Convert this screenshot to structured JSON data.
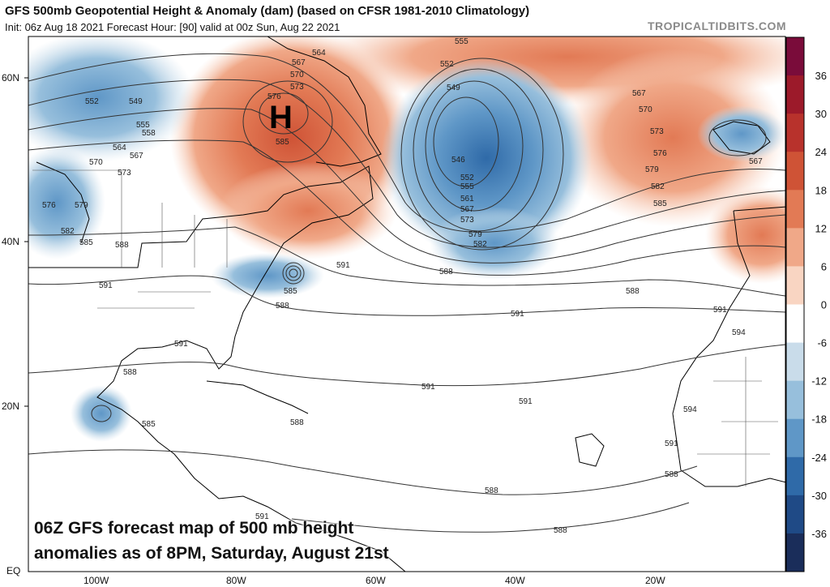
{
  "header": {
    "title": "GFS 500mb Geopotential Height & Anomaly (dam) (based on CFSR 1981-2010 Climatology)",
    "subtitle": "Init: 06z Aug 18 2021   Forecast Hour: [90]   valid at 00z Sun, Aug 22 2021",
    "credit": "TROPICALTIDBITS.COM"
  },
  "map": {
    "lat_labels": [
      "60N",
      "40N",
      "20N",
      "EQ"
    ],
    "lon_labels": [
      "100W",
      "80W",
      "60W",
      "40W",
      "20W"
    ],
    "high_marker": "H",
    "contour_labels": [
      "555",
      "552",
      "549",
      "546",
      "552",
      "555",
      "558",
      "561",
      "564",
      "567",
      "570",
      "573",
      "576",
      "579",
      "582",
      "585",
      "588",
      "591",
      "594",
      "567",
      "564",
      "570",
      "573",
      "576",
      "585",
      "549",
      "552",
      "555",
      "558",
      "564",
      "567",
      "570",
      "573",
      "576",
      "579",
      "582",
      "585",
      "588",
      "591",
      "588",
      "585",
      "588",
      "591",
      "591",
      "588",
      "591",
      "591",
      "588",
      "591",
      "591",
      "594",
      "594",
      "591",
      "588",
      "588",
      "588",
      "585",
      "567",
      "567",
      "570",
      "573",
      "576",
      "579",
      "582",
      "585",
      "588"
    ]
  },
  "colorbar": {
    "labels": [
      "36",
      "30",
      "24",
      "18",
      "12",
      "6",
      "0",
      "-6",
      "-12",
      "-18",
      "-24",
      "-30",
      "-36"
    ],
    "colors": [
      "#7a0c3a",
      "#9c1a2a",
      "#b8322c",
      "#cf5336",
      "#e27a55",
      "#f0a888",
      "#f9d5c2",
      "#ffffff",
      "#c9dcea",
      "#97bfdc",
      "#5f97c7",
      "#2f6aa8",
      "#1f4a86",
      "#1a2d5a"
    ]
  },
  "caption": {
    "line1": "06Z GFS forecast map of 500 mb height",
    "line2": "anomalies as of 8PM, Saturday, August 21st"
  }
}
